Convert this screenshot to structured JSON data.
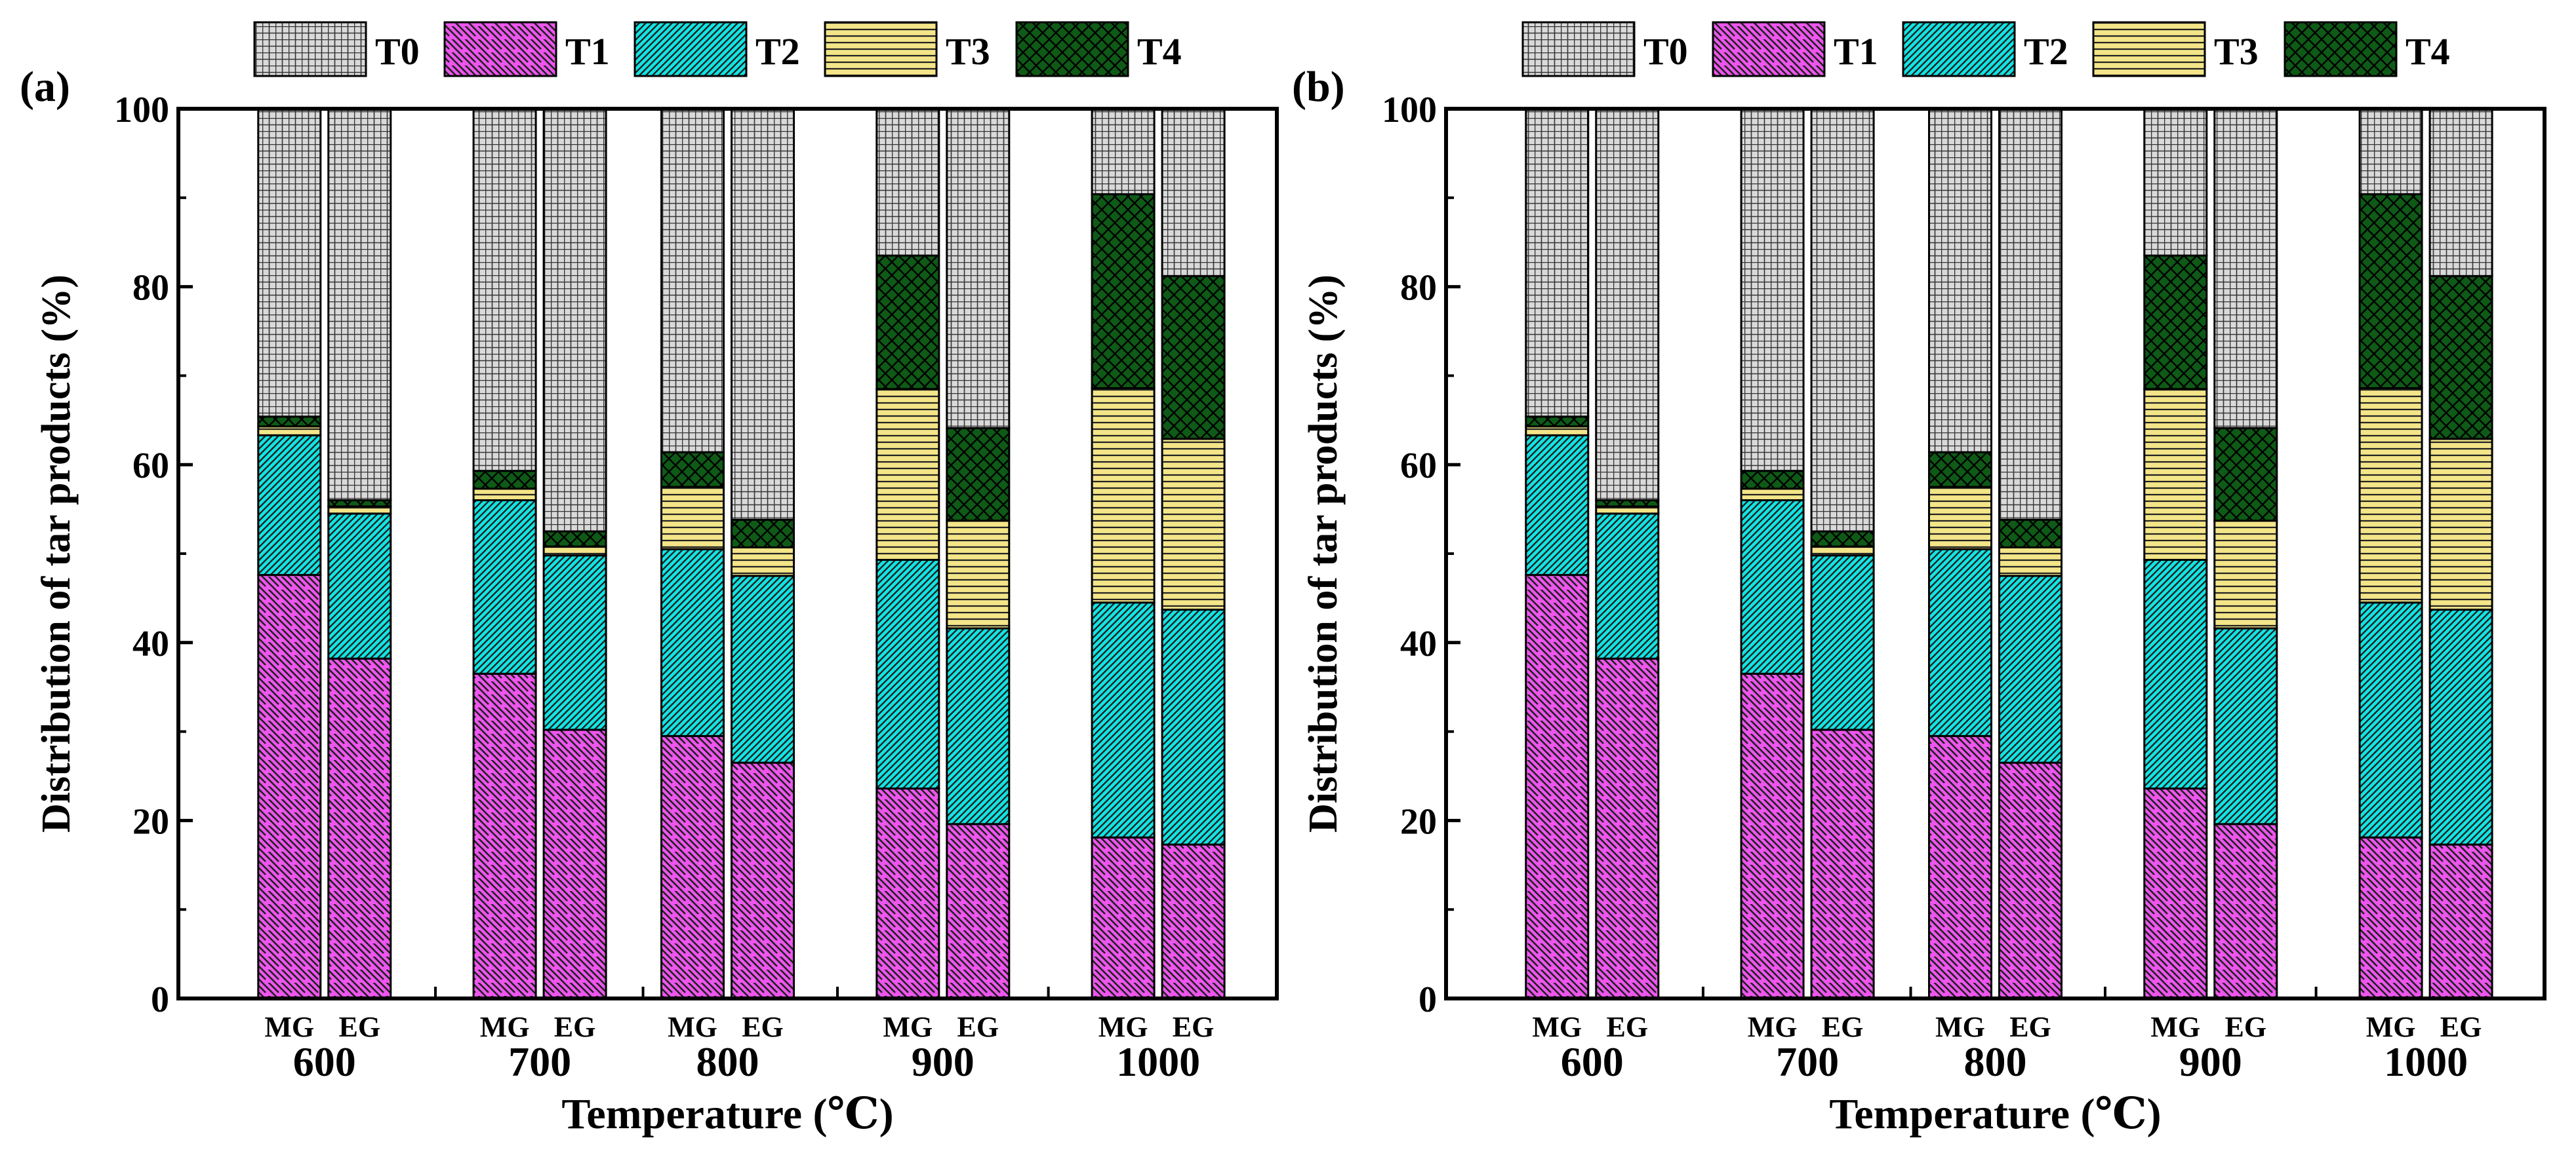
{
  "legend": {
    "entries": [
      {
        "key": "T0",
        "label": "T0"
      },
      {
        "key": "T1",
        "label": "T1"
      },
      {
        "key": "T2",
        "label": "T2"
      },
      {
        "key": "T3",
        "label": "T3"
      },
      {
        "key": "T4",
        "label": "T4"
      }
    ]
  },
  "colors": {
    "T0": "#d9d9d9",
    "T1": "#ee55ee",
    "T2": "#11e5e5",
    "T3": "#f3e588",
    "T4": "#0e5a16"
  },
  "chart_data": [
    {
      "type": "bar",
      "stacked": true,
      "panel_label": "(a)",
      "xlabel": "Temperature (℃)",
      "ylabel": "Distribution of tar products (%)",
      "ylim": [
        0,
        100
      ],
      "yticks": [
        "0",
        "20",
        "40",
        "60",
        "80",
        "100"
      ],
      "grid": false,
      "legend_position": "top",
      "categories": [
        "600",
        "700",
        "800",
        "900",
        "1000"
      ],
      "subcategories": [
        "MG",
        "EG"
      ],
      "series": [
        {
          "name": "T1",
          "key": "T1",
          "values": [
            [
              47.6,
              38.2
            ],
            [
              36.5,
              30.2
            ],
            [
              29.5,
              26.5
            ],
            [
              23.6,
              19.6
            ],
            [
              18.1,
              17.3
            ]
          ]
        },
        {
          "name": "T2",
          "key": "T2",
          "values": [
            [
              15.7,
              16.3
            ],
            [
              19.5,
              19.6
            ],
            [
              21.0,
              21.0
            ],
            [
              25.7,
              22.0
            ],
            [
              26.4,
              26.4
            ]
          ]
        },
        {
          "name": "T3",
          "key": "T3",
          "values": [
            [
              1.0,
              0.8
            ],
            [
              1.3,
              1.0
            ],
            [
              7.0,
              3.2
            ],
            [
              19.2,
              12.1
            ],
            [
              24.1,
              19.2
            ]
          ]
        },
        {
          "name": "T4",
          "key": "T4",
          "values": [
            [
              1.1,
              0.7
            ],
            [
              2.0,
              1.7
            ],
            [
              3.9,
              3.1
            ],
            [
              15.0,
              10.4
            ],
            [
              21.8,
              18.3
            ]
          ]
        },
        {
          "name": "T0",
          "key": "T0",
          "values": [
            [
              34.6,
              44.0
            ],
            [
              40.7,
              47.5
            ],
            [
              38.6,
              46.2
            ],
            [
              16.5,
              35.9
            ],
            [
              9.6,
              18.8
            ]
          ]
        }
      ]
    },
    {
      "type": "bar",
      "stacked": true,
      "panel_label": "(b)",
      "xlabel": "Temperature (℃)",
      "ylabel": "Distribution of tar products (%)",
      "ylim": [
        0,
        100
      ],
      "yticks": [
        "0",
        "20",
        "40",
        "60",
        "80",
        "100"
      ],
      "grid": false,
      "legend_position": "top",
      "categories": [
        "600",
        "700",
        "800",
        "900",
        "1000"
      ],
      "subcategories": [
        "MG",
        "EG"
      ],
      "series": [
        {
          "name": "T1",
          "key": "T1",
          "values": [
            [
              47.6,
              38.2
            ],
            [
              36.5,
              30.2
            ],
            [
              29.5,
              26.5
            ],
            [
              23.6,
              19.6
            ],
            [
              18.1,
              17.3
            ]
          ]
        },
        {
          "name": "T2",
          "key": "T2",
          "values": [
            [
              15.7,
              16.3
            ],
            [
              19.5,
              19.6
            ],
            [
              21.0,
              21.0
            ],
            [
              25.7,
              22.0
            ],
            [
              26.4,
              26.4
            ]
          ]
        },
        {
          "name": "T3",
          "key": "T3",
          "values": [
            [
              1.0,
              0.8
            ],
            [
              1.3,
              1.0
            ],
            [
              7.0,
              3.2
            ],
            [
              19.2,
              12.1
            ],
            [
              24.1,
              19.2
            ]
          ]
        },
        {
          "name": "T4",
          "key": "T4",
          "values": [
            [
              1.1,
              0.7
            ],
            [
              2.0,
              1.7
            ],
            [
              3.9,
              3.1
            ],
            [
              15.0,
              10.4
            ],
            [
              21.8,
              18.3
            ]
          ]
        },
        {
          "name": "T0",
          "key": "T0",
          "values": [
            [
              34.6,
              44.0
            ],
            [
              40.7,
              47.5
            ],
            [
              38.6,
              46.2
            ],
            [
              16.5,
              35.9
            ],
            [
              9.6,
              18.8
            ]
          ]
        }
      ]
    }
  ]
}
